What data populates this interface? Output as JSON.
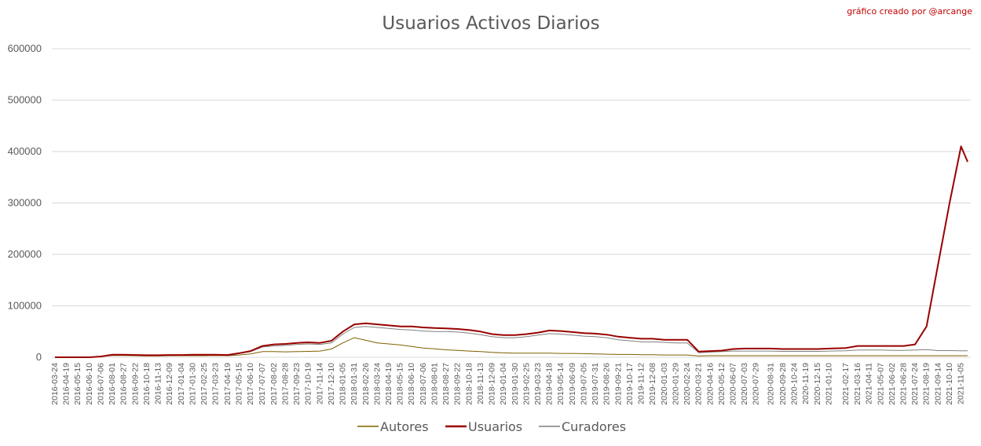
{
  "chart_data": {
    "type": "line",
    "title": "Usuarios Activos Diarios",
    "credit": "gráfico creado por @arcange",
    "xlabel": "",
    "ylabel": "",
    "ylim": [
      0,
      600000
    ],
    "yticks": [
      "0",
      "100000",
      "200000",
      "300000",
      "400000",
      "500000",
      "600000"
    ],
    "grid": true,
    "legend_position": "bottom",
    "x_tick_labels": [
      "2016-03-24",
      "2016-04-19",
      "2016-05-15",
      "2016-06-10",
      "2016-07-06",
      "2016-08-01",
      "2016-08-27",
      "2016-09-22",
      "2016-10-18",
      "2016-11-13",
      "2016-12-09",
      "2017-01-04",
      "2017-01-30",
      "2017-02-25",
      "2017-03-23",
      "2017-04-19",
      "2017-05-15",
      "2017-06-10",
      "2017-07-07",
      "2017-08-02",
      "2017-08-28",
      "2017-09-23",
      "2017-10-19",
      "2017-11-14",
      "2017-12-10",
      "2018-01-05",
      "2018-01-31",
      "2018-02-26",
      "2018-03-24",
      "2018-04-19",
      "2018-05-15",
      "2018-06-10",
      "2018-07-06",
      "2018-08-01",
      "2018-08-27",
      "2018-09-22",
      "2018-10-18",
      "2018-11-13",
      "2018-12-09",
      "2019-01-04",
      "2019-01-30",
      "2019-02-25",
      "2019-03-23",
      "2019-04-18",
      "2019-05-14",
      "2019-06-09",
      "2019-07-05",
      "2019-07-31",
      "2019-08-26",
      "2019-09-21",
      "2019-10-17",
      "2019-11-12",
      "2019-12-08",
      "2020-01-03",
      "2020-01-29",
      "2020-02-24",
      "2020-03-21",
      "2020-04-16",
      "2020-05-12",
      "2020-06-07",
      "2020-07-03",
      "2020-07-29",
      "2020-08-31",
      "2020-09-28",
      "2020-10-24",
      "2020-11-19",
      "2020-12-15",
      "2021-01-10",
      "2021-02-17",
      "2021-03-16",
      "2021-04-11",
      "2021-05-07",
      "2021-06-02",
      "2021-06-28",
      "2021-07-24",
      "2021-08-19",
      "2021-09-14",
      "2021-10-10",
      "2021-11-05"
    ],
    "x": [
      "2016-03-24",
      "2016-04-19",
      "2016-05-15",
      "2016-06-10",
      "2016-07-06",
      "2016-08-01",
      "2016-08-27",
      "2016-09-22",
      "2016-10-18",
      "2016-11-13",
      "2016-12-09",
      "2017-01-04",
      "2017-01-30",
      "2017-02-25",
      "2017-03-23",
      "2017-04-19",
      "2017-05-15",
      "2017-06-10",
      "2017-07-07",
      "2017-08-02",
      "2017-08-28",
      "2017-09-23",
      "2017-10-19",
      "2017-11-14",
      "2017-12-10",
      "2018-01-05",
      "2018-01-31",
      "2018-02-26",
      "2018-03-24",
      "2018-04-19",
      "2018-05-15",
      "2018-06-10",
      "2018-07-06",
      "2018-08-01",
      "2018-08-27",
      "2018-09-22",
      "2018-10-18",
      "2018-11-13",
      "2018-12-09",
      "2019-01-04",
      "2019-01-30",
      "2019-02-25",
      "2019-03-23",
      "2019-04-18",
      "2019-05-14",
      "2019-06-09",
      "2019-07-05",
      "2019-07-31",
      "2019-08-26",
      "2019-09-21",
      "2019-10-17",
      "2019-11-12",
      "2019-12-08",
      "2020-01-03",
      "2020-01-29",
      "2020-02-24",
      "2020-03-21",
      "2020-04-16",
      "2020-05-12",
      "2020-06-07",
      "2020-07-03",
      "2020-07-29",
      "2020-08-31",
      "2020-09-28",
      "2020-10-24",
      "2020-11-19",
      "2020-12-15",
      "2021-01-10",
      "2021-02-17",
      "2021-03-16",
      "2021-04-11",
      "2021-05-07",
      "2021-06-02",
      "2021-06-28",
      "2021-07-24",
      "2021-08-19",
      "2021-09-14",
      "2021-10-10",
      "2021-11-05",
      "2021-11-20"
    ],
    "series": [
      {
        "name": "Autores",
        "color": "#7f6000",
        "values": [
          0,
          0,
          0,
          0,
          1500,
          3500,
          3500,
          3000,
          2500,
          2500,
          3000,
          3000,
          3000,
          3000,
          3500,
          3000,
          4500,
          6500,
          11000,
          11000,
          10500,
          11000,
          11500,
          12000,
          16000,
          28000,
          38000,
          33000,
          28000,
          26000,
          24000,
          21000,
          18000,
          16500,
          14500,
          13500,
          12000,
          11000,
          9500,
          8500,
          8000,
          8000,
          8000,
          8000,
          7500,
          7500,
          7000,
          6500,
          6000,
          5500,
          5500,
          5000,
          5000,
          4500,
          4500,
          4500,
          2500,
          3000,
          3000,
          3000,
          3000,
          3000,
          3000,
          3000,
          3000,
          3000,
          3000,
          3000,
          3000,
          3000,
          3000,
          3000,
          3000,
          3000,
          3000,
          3000,
          3000,
          3000,
          3000,
          3000
        ]
      },
      {
        "name": "Usuarios",
        "color": "#990000",
        "values": [
          0,
          0,
          0,
          0,
          1500,
          5000,
          5000,
          4500,
          4000,
          4000,
          4500,
          4500,
          5000,
          5000,
          5000,
          4500,
          8000,
          12000,
          22000,
          25000,
          26000,
          28000,
          29000,
          28000,
          32000,
          50000,
          64000,
          66000,
          64000,
          62000,
          60000,
          60000,
          58000,
          57000,
          56000,
          55000,
          53000,
          50000,
          45000,
          43000,
          43000,
          45000,
          48000,
          52000,
          51000,
          49000,
          47000,
          46000,
          44000,
          40000,
          38000,
          36000,
          36000,
          34000,
          34000,
          34000,
          11000,
          12000,
          13000,
          16000,
          17000,
          17000,
          17000,
          16000,
          16000,
          16000,
          16000,
          17000,
          18000,
          22000,
          22000,
          22000,
          22000,
          22000,
          25000,
          60000,
          180000,
          300000,
          410000,
          380000
        ]
      },
      {
        "name": "Curadores",
        "color": "#7f7f7f",
        "values": [
          0,
          0,
          0,
          0,
          1200,
          4500,
          4500,
          4000,
          3500,
          3500,
          4000,
          4000,
          4500,
          4500,
          4500,
          4000,
          7000,
          11000,
          20000,
          22000,
          23000,
          25000,
          26000,
          25000,
          28000,
          45000,
          58000,
          60000,
          58000,
          56000,
          54000,
          53000,
          51000,
          50000,
          50000,
          49000,
          47000,
          44000,
          40000,
          38000,
          38000,
          40000,
          43000,
          46000,
          45000,
          43000,
          41000,
          40000,
          38000,
          34000,
          32000,
          30000,
          30000,
          29000,
          28000,
          28000,
          9000,
          10000,
          11000,
          12000,
          12000,
          12000,
          12000,
          11500,
          11500,
          11500,
          11500,
          12000,
          12500,
          14000,
          14000,
          14000,
          13500,
          13500,
          14000,
          15000,
          13000,
          13000,
          12500,
          12500
        ]
      }
    ]
  }
}
